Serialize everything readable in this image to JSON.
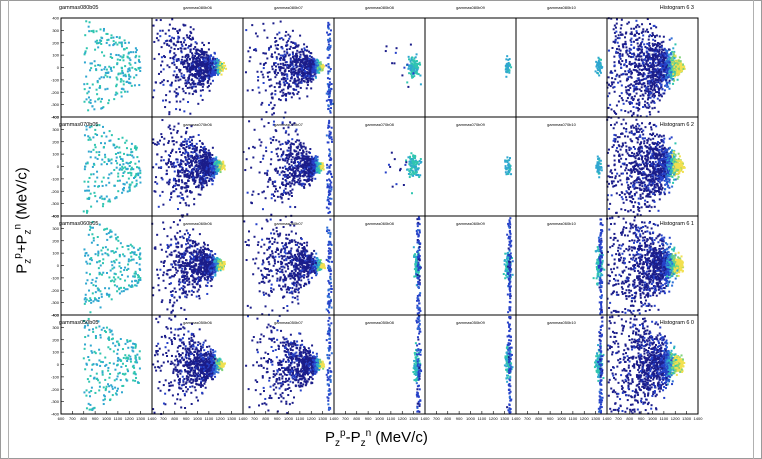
{
  "chart_data": {
    "type": "scatter",
    "xlabel": "Pz^p-Pz^n  (MeV/c)",
    "ylabel": "Pz^p+Pz^n  (MeV/c)",
    "xlim": [
      600,
      1400
    ],
    "ylim": [
      -400,
      400
    ],
    "x_ticks": [
      700,
      800,
      900,
      1000,
      1100,
      1200,
      1300,
      1400
    ],
    "y_ticks": [
      -400,
      -300,
      -200,
      -100,
      0,
      100,
      200,
      300,
      400
    ],
    "first_x_tick_left_panel": "600",
    "grid": false,
    "panel_titles": [
      [
        "gammas080b05",
        "gammas080b06",
        "gammas080b07",
        "gammas080b08",
        "gammas080b09",
        "gammas080b10",
        "Histogram 6 3"
      ],
      [
        "gammas070b05",
        "gammas070b06",
        "gammas070b07",
        "gammas070b08",
        "gammas070b09",
        "gammas070b10",
        "Histogram 6 2"
      ],
      [
        "gammas060b05",
        "gammas060b06",
        "gammas060b07",
        "gammas060b08",
        "gammas060b09",
        "gammas060b10",
        "Histogram 6 1"
      ],
      [
        "gammas050b05",
        "gammas050b06",
        "gammas050b07",
        "gammas050b08",
        "gammas050b09",
        "gammas050b10",
        "Histogram 6 0"
      ]
    ],
    "panel_density": [
      [
        "scatter-cyan",
        "wide-cone",
        "cone-right",
        "spot-small",
        "spot-tiny",
        "spot-tiny",
        "dense-full"
      ],
      [
        "scatter-cyan",
        "wide-cone",
        "cone-right",
        "spot-small",
        "spot-tiny",
        "spot-tiny",
        "dense-full"
      ],
      [
        "scatter-cyan",
        "wide-cone",
        "cone-right",
        "spot-band",
        "spot-band",
        "spot-band",
        "dense-full"
      ],
      [
        "scatter-cyan",
        "wide-cone",
        "cone-right",
        "spot-band",
        "spot-band",
        "spot-band",
        "dense-full"
      ]
    ],
    "colormap": [
      "#1b1d8a",
      "#2641c8",
      "#2f6fd6",
      "#2fa7d0",
      "#2fc5b0",
      "#7fd37a",
      "#f2e050"
    ]
  }
}
